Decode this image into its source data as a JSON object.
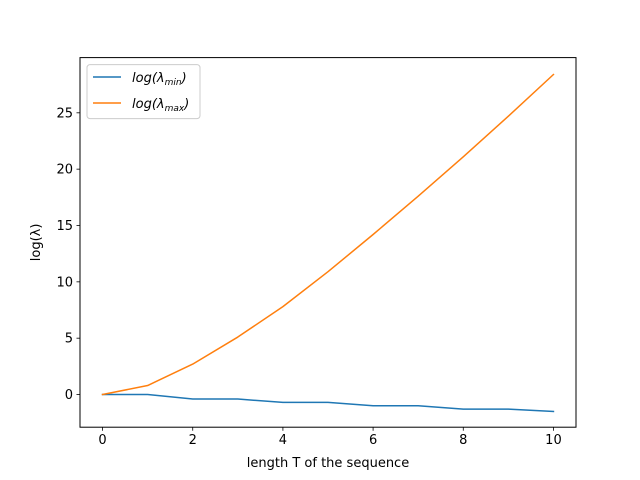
{
  "chart_data": {
    "type": "line",
    "title": "",
    "xlabel": "length T of the sequence",
    "ylabel": "log(λ)",
    "xlim": [
      -0.5,
      10.5
    ],
    "ylim": [
      -2.9,
      29.9
    ],
    "xticks": [
      0,
      2,
      4,
      6,
      8,
      10
    ],
    "yticks": [
      0,
      5,
      10,
      15,
      20,
      25
    ],
    "grid": false,
    "legend_position": "top-left",
    "x": [
      0,
      1,
      2,
      3,
      4,
      5,
      6,
      7,
      8,
      9,
      10
    ],
    "series": [
      {
        "name": "log(λmin)",
        "legend_main": "log(λ",
        "legend_sub": "min",
        "legend_close": ")",
        "color": "#1f77b4",
        "values": [
          0.0,
          0.0,
          -0.4,
          -0.4,
          -0.7,
          -0.7,
          -1.0,
          -1.0,
          -1.3,
          -1.3,
          -1.5
        ]
      },
      {
        "name": "log(λmax)",
        "legend_main": "log(λ",
        "legend_sub": "max",
        "legend_close": ")",
        "color": "#ff7f0e",
        "values": [
          0.0,
          0.8,
          2.7,
          5.1,
          7.8,
          10.9,
          14.2,
          17.6,
          21.1,
          24.7,
          28.4
        ]
      }
    ]
  }
}
